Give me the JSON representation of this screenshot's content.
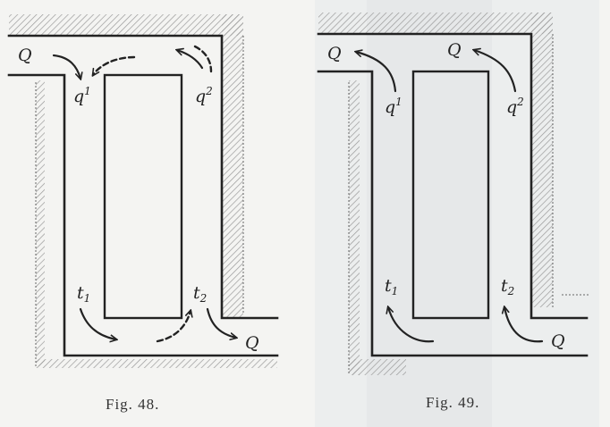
{
  "fig48": {
    "caption": "Fig. 48.",
    "labels": {
      "Q_in": "Q",
      "q1": "q",
      "q1_sup": "1",
      "q2": "q",
      "q2_sup": "2",
      "t1": "t",
      "t1_sub": "1",
      "t2": "t",
      "t2_sub": "2",
      "Q_out": "Q"
    }
  },
  "fig49": {
    "caption": "Fig. 49.",
    "labels": {
      "Q_left": "Q",
      "Q_right": "Q",
      "q1": "q",
      "q1_sup": "1",
      "q2": "q",
      "q2_sup": "2",
      "t1": "t",
      "t1_sub": "1",
      "t2": "t",
      "t2_sub": "2",
      "Q_bottom": "Q"
    }
  }
}
